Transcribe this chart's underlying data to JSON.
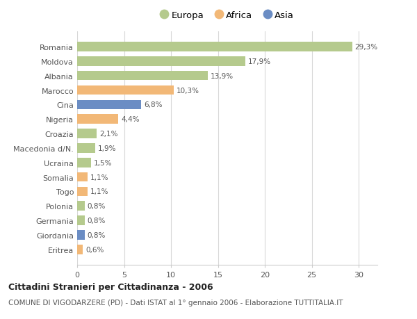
{
  "categories": [
    "Romania",
    "Moldova",
    "Albania",
    "Marocco",
    "Cina",
    "Nigeria",
    "Croazia",
    "Macedonia d/N.",
    "Ucraina",
    "Somalia",
    "Togo",
    "Polonia",
    "Germania",
    "Giordania",
    "Eritrea"
  ],
  "values": [
    29.3,
    17.9,
    13.9,
    10.3,
    6.8,
    4.4,
    2.1,
    1.9,
    1.5,
    1.1,
    1.1,
    0.8,
    0.8,
    0.8,
    0.6
  ],
  "labels": [
    "29,3%",
    "17,9%",
    "13,9%",
    "10,3%",
    "6,8%",
    "4,4%",
    "2,1%",
    "1,9%",
    "1,5%",
    "1,1%",
    "1,1%",
    "0,8%",
    "0,8%",
    "0,8%",
    "0,6%"
  ],
  "continents": [
    "Europa",
    "Europa",
    "Europa",
    "Africa",
    "Asia",
    "Africa",
    "Europa",
    "Europa",
    "Europa",
    "Africa",
    "Africa",
    "Europa",
    "Europa",
    "Asia",
    "Africa"
  ],
  "colors": {
    "Europa": "#b5ca8d",
    "Africa": "#f2b877",
    "Asia": "#6b8dc4"
  },
  "legend_order": [
    "Europa",
    "Africa",
    "Asia"
  ],
  "title": "Cittadini Stranieri per Cittadinanza - 2006",
  "subtitle": "COMUNE DI VIGODARZERE (PD) - Dati ISTAT al 1° gennaio 2006 - Elaborazione TUTTITALIA.IT",
  "xlim": [
    0,
    32
  ],
  "xticks": [
    0,
    5,
    10,
    15,
    20,
    25,
    30
  ],
  "background_color": "#ffffff",
  "grid_color": "#d8d8d8",
  "bar_height": 0.65
}
